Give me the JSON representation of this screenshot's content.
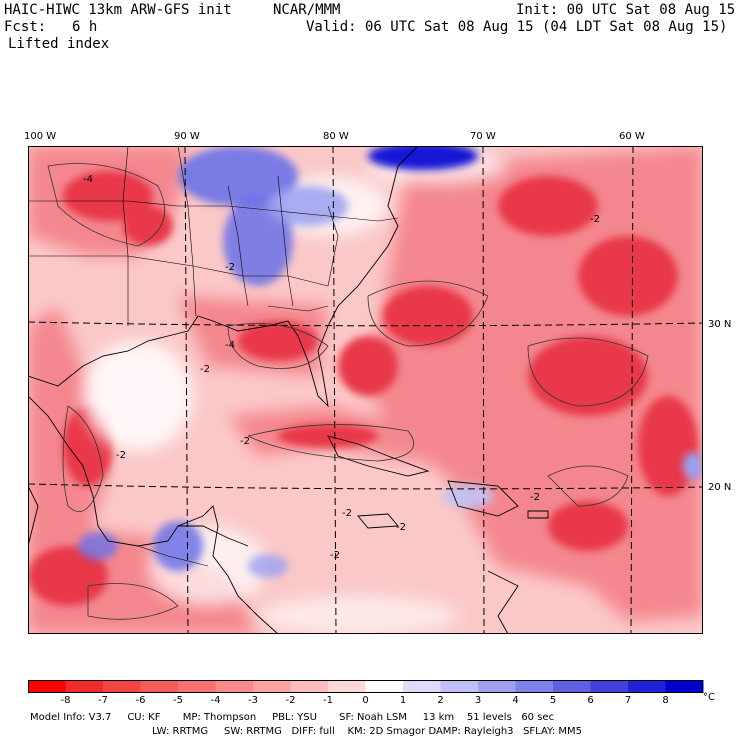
{
  "header": {
    "title_left": "HAIC-HIWC 13km ARW-GFS init",
    "center": "NCAR/MMM",
    "init": "Init: 00 UTC Sat 08 Aug 15",
    "fcst_label": "Fcst:",
    "fcst_value": "6 h",
    "valid": "Valid: 06 UTC Sat 08 Aug 15 (04 LDT Sat 08 Aug 15)",
    "field": "Lifted index"
  },
  "map": {
    "longitude_labels": [
      "100 W",
      "90 W",
      "80 W",
      "70 W",
      "60 W"
    ],
    "latitude_labels": [
      "30 N",
      "20 N"
    ],
    "contour_labels": [
      "-4",
      "-2",
      "-2",
      "-4",
      "-2",
      "-2",
      "-2",
      "-2",
      "-2",
      "-2",
      "-2"
    ],
    "colors": {
      "strong_negative": "#e8394a",
      "moderate_negative": "#f4878e",
      "weak_negative": "#fbc8c8",
      "near_zero": "#ffffff",
      "positive": "#6b72e8",
      "strong_positive": "#1515d6"
    }
  },
  "colorbar": {
    "ticks": [
      "-8",
      "-7",
      "-6",
      "-5",
      "-4",
      "-3",
      "-2",
      "-1",
      "0",
      "1",
      "2",
      "3",
      "4",
      "5",
      "6",
      "7",
      "8"
    ],
    "unit": "°C",
    "swatches": [
      "#ff0000",
      "#f32a2a",
      "#f54444",
      "#f75c5c",
      "#f97272",
      "#fa8989",
      "#fca2a2",
      "#fdbcbc",
      "#fed8d8",
      "#ffffff",
      "#ddddfb",
      "#c0c0f6",
      "#a0a0f0",
      "#8080ea",
      "#6060e3",
      "#4040dc",
      "#2020d6",
      "#0000cd"
    ]
  },
  "footer": {
    "line1": "Model Info: V3.7     CU: KF       MP: Thompson     PBL: YSU       SF: Noah LSM     13 km    51 levels   60 sec",
    "line2": "LW: RRTMG     SW: RRTMG   DIFF: full    KM: 2D Smagor DAMP: Rayleigh3   SFLAY: MM5"
  }
}
